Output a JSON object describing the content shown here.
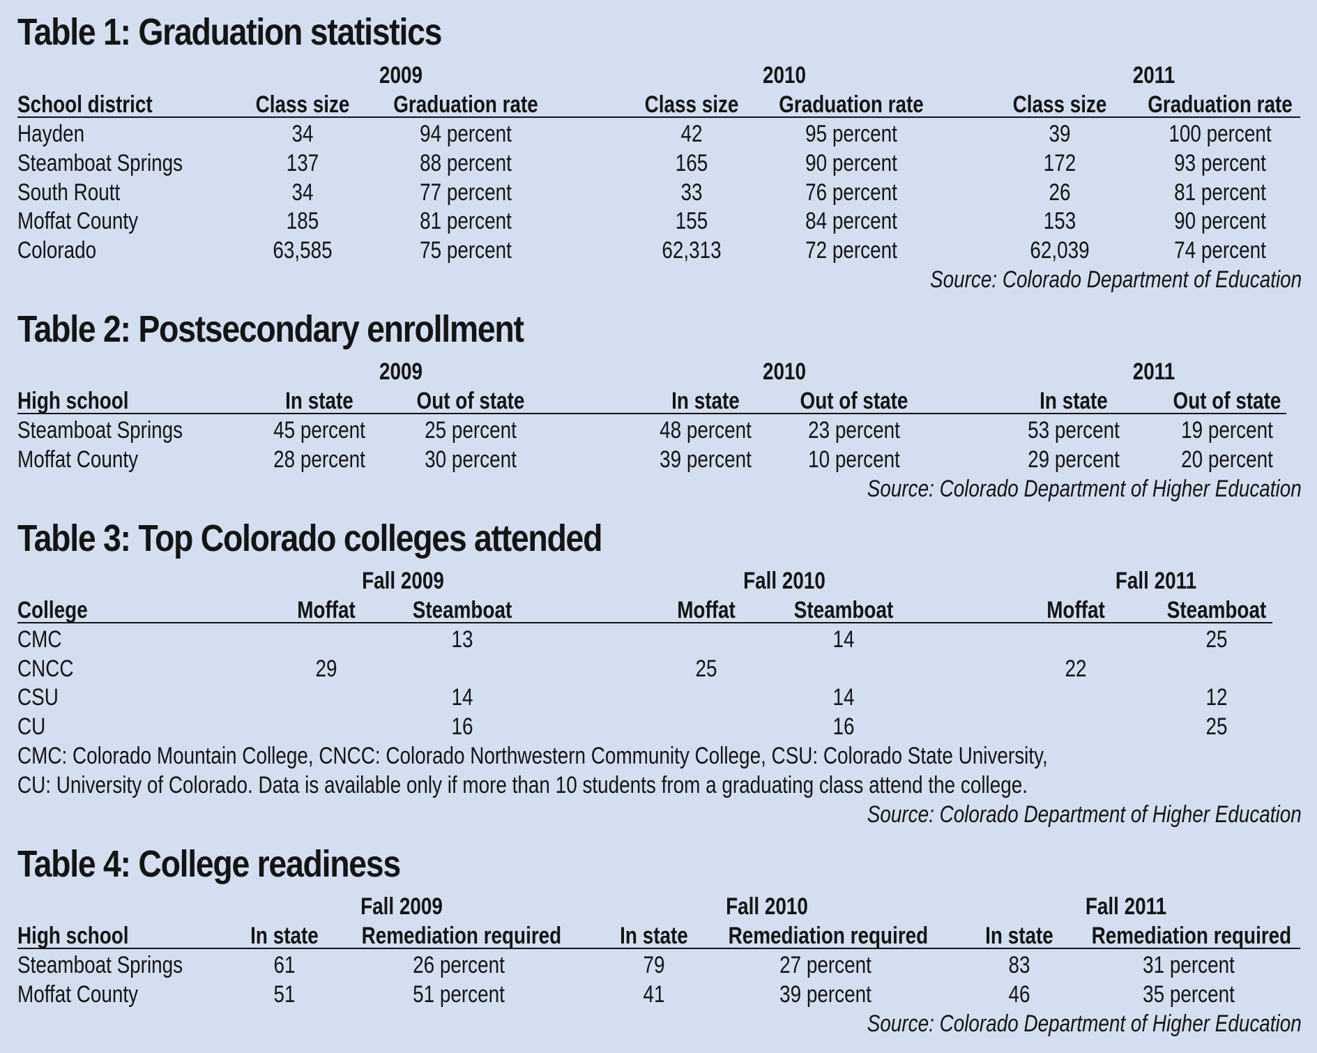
{
  "table1": {
    "title": "Table 1: Graduation statistics",
    "years": [
      "2009",
      "2010",
      "2011"
    ],
    "headers": [
      "School district",
      "Class size",
      "Graduation rate"
    ],
    "rows": [
      {
        "name": "Hayden",
        "vals": [
          "34",
          "94 percent",
          "42",
          "95 percent",
          "39",
          "100 percent"
        ]
      },
      {
        "name": "Steamboat Springs",
        "vals": [
          "137",
          "88 percent",
          "165",
          "90 percent",
          "172",
          "93 percent"
        ]
      },
      {
        "name": "South Routt",
        "vals": [
          "34",
          "77 percent",
          "33",
          "76 percent",
          "26",
          "81 percent"
        ]
      },
      {
        "name": "Moffat County",
        "vals": [
          "185",
          "81 percent",
          "155",
          "84 percent",
          "153",
          "90 percent"
        ]
      },
      {
        "name": "Colorado",
        "vals": [
          "63,585",
          "75 percent",
          "62,313",
          "72 percent",
          "62,039",
          "74 percent"
        ]
      }
    ],
    "source": "Source: Colorado Department of Education"
  },
  "table2": {
    "title": "Table 2: Postsecondary enrollment",
    "years": [
      "2009",
      "2010",
      "2011"
    ],
    "headers": [
      "High school",
      "In state",
      "Out of state"
    ],
    "rows": [
      {
        "name": "Steamboat Springs",
        "vals": [
          "45 percent",
          "25 percent",
          "48 percent",
          "23 percent",
          "53 percent",
          "19 percent"
        ]
      },
      {
        "name": "Moffat County",
        "vals": [
          "28 percent",
          "30 percent",
          "39 percent",
          "10 percent",
          "29 percent",
          "20 percent"
        ]
      }
    ],
    "source": "Source: Colorado Department of Higher Education"
  },
  "table3": {
    "title": "Table 3: Top Colorado colleges attended",
    "years": [
      "Fall 2009",
      "Fall 2010",
      "Fall 2011"
    ],
    "headers": [
      "College",
      "Moffat",
      "Steamboat"
    ],
    "rows": [
      {
        "name": "CMC",
        "vals": [
          "",
          "13",
          "",
          "14",
          "",
          "25"
        ]
      },
      {
        "name": "CNCC",
        "vals": [
          "29",
          "",
          "25",
          "",
          "22",
          ""
        ]
      },
      {
        "name": "CSU",
        "vals": [
          "",
          "14",
          "",
          "14",
          "",
          "12"
        ]
      },
      {
        "name": "CU",
        "vals": [
          "",
          "16",
          "",
          "16",
          "",
          "25"
        ]
      }
    ],
    "note1": "CMC: Colorado Mountain College, CNCC: Colorado Northwestern Community College, CSU: Colorado State University,",
    "note2": "CU: University of Colorado. Data is available only if more than 10 students from a graduating class attend the college.",
    "source": "Source: Colorado Department of Higher Education"
  },
  "table4": {
    "title": "Table 4: College readiness",
    "years": [
      "Fall 2009",
      "Fall 2010",
      "Fall 2011"
    ],
    "headers": [
      "High school",
      "In state",
      "Remediation required"
    ],
    "rows": [
      {
        "name": "Steamboat Springs",
        "vals": [
          "61",
          "26 percent",
          "79",
          "27 percent",
          "83",
          "31 percent"
        ]
      },
      {
        "name": "Moffat County",
        "vals": [
          "51",
          "51 percent",
          "41",
          "39 percent",
          "46",
          "35 percent"
        ]
      }
    ],
    "source": "Source: Colorado Department of Higher Education"
  }
}
